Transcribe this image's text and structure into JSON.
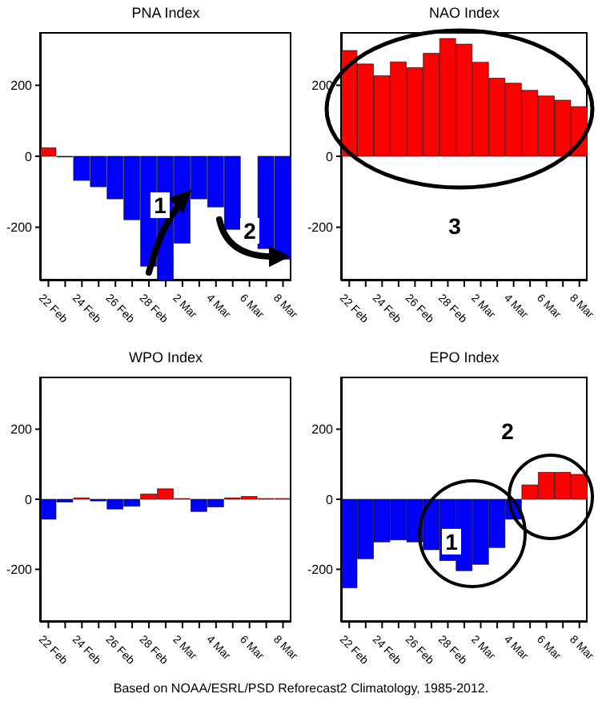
{
  "chart_data": [
    {
      "type": "bar",
      "title": "PNA Index",
      "categories": [
        "22 Feb",
        null,
        "24 Feb",
        null,
        "26 Feb",
        null,
        "28 Feb",
        null,
        "2 Mar",
        null,
        "4 Mar",
        null,
        "6 Mar",
        null,
        "8 Mar"
      ],
      "values": [
        24,
        -2,
        -68,
        -86,
        -120,
        -179,
        -310,
        -350,
        -245,
        -120,
        -143,
        -206,
        null,
        -260,
        -290
      ],
      "colors": [
        "#ff0000",
        "#0000ff",
        "#0000ff",
        "#0000ff",
        "#0000ff",
        "#0000ff",
        "#0000ff",
        "#0000ff",
        "#0000ff",
        "#0000ff",
        "#0000ff",
        "#0000ff",
        "#0000ff",
        "#0000ff",
        "#0000ff"
      ],
      "ylim": [
        -350,
        350
      ],
      "yticks": [
        -200,
        0,
        200
      ],
      "annotations": [
        {
          "text": "1",
          "y": -138
        },
        {
          "text": "2",
          "y": -210
        }
      ]
    },
    {
      "type": "bar",
      "title": "NAO Index",
      "categories": [
        "22 Feb",
        null,
        "24 Feb",
        null,
        "26 Feb",
        null,
        "28 Feb",
        null,
        "2 Mar",
        null,
        "4 Mar",
        null,
        "6 Mar",
        null,
        "8 Mar"
      ],
      "values": [
        298,
        260,
        227,
        266,
        250,
        290,
        332,
        316,
        265,
        220,
        206,
        186,
        170,
        158,
        140
      ],
      "colors": [
        "#ff0000",
        "#ff0000",
        "#ff0000",
        "#ff0000",
        "#ff0000",
        "#ff0000",
        "#ff0000",
        "#ff0000",
        "#ff0000",
        "#ff0000",
        "#ff0000",
        "#ff0000",
        "#ff0000",
        "#ff0000",
        "#ff0000"
      ],
      "ylim": [
        -350,
        350
      ],
      "yticks": [
        -200,
        0,
        200
      ],
      "annotations": [
        "3"
      ]
    },
    {
      "type": "bar",
      "title": "WPO Index",
      "categories": [
        "22 Feb",
        null,
        "24 Feb",
        null,
        "26 Feb",
        null,
        "28 Feb",
        null,
        "2 Mar",
        null,
        "4 Mar",
        null,
        "6 Mar",
        null,
        "8 Mar"
      ],
      "values": [
        -57,
        -8,
        4,
        -5,
        -28,
        -20,
        15,
        30,
        2,
        -35,
        -22,
        4,
        8,
        2,
        2
      ],
      "colors": [
        "#0000ff",
        "#0000ff",
        "#ff0000",
        "#0000ff",
        "#0000ff",
        "#0000ff",
        "#ff0000",
        "#ff0000",
        "#ff0000",
        "#0000ff",
        "#0000ff",
        "#ff0000",
        "#ff0000",
        "#ff0000",
        "#ff0000"
      ],
      "ylim": [
        -350,
        350
      ],
      "yticks": [
        -200,
        0,
        200
      ],
      "annotations": [
        "Based on NOAA/ESRL/PSD Reforecast2 Climatology, 1985-2012."
      ]
    },
    {
      "type": "bar",
      "title": "EPO Index",
      "categories": [
        "22 Feb",
        null,
        "24 Feb",
        null,
        "26 Feb",
        null,
        "28 Feb",
        null,
        "2 Mar",
        null,
        "4 Mar",
        null,
        "6 Mar",
        null,
        "8 Mar"
      ],
      "values": [
        -253,
        -170,
        -122,
        -116,
        -122,
        -144,
        -175,
        -204,
        -186,
        -138,
        -57,
        41,
        77,
        77,
        71
      ],
      "colors": [
        "#0000ff",
        "#0000ff",
        "#0000ff",
        "#0000ff",
        "#0000ff",
        "#0000ff",
        "#0000ff",
        "#0000ff",
        "#0000ff",
        "#0000ff",
        "#0000ff",
        "#ff0000",
        "#ff0000",
        "#ff0000",
        "#ff0000"
      ],
      "ylim": [
        -350,
        350
      ],
      "yticks": [
        -200,
        0,
        200
      ],
      "annotations": [
        {
          "text": "1",
          "y": -121
        },
        "2"
      ]
    }
  ]
}
